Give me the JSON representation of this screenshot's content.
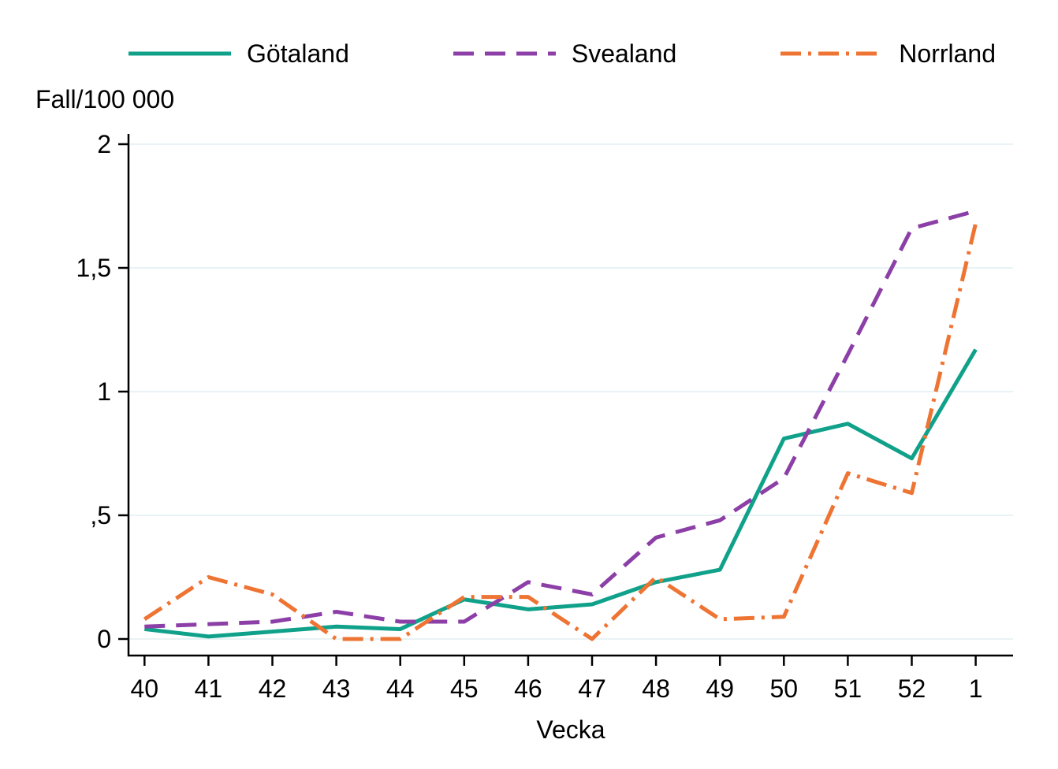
{
  "y_axis_title": "Fall/100 000",
  "x_axis_title": "Vecka",
  "legend": {
    "items": [
      {
        "label": "Götaland",
        "icon": "solid-line-sample-icon"
      },
      {
        "label": "Svealand",
        "icon": "dashed-line-sample-icon"
      },
      {
        "label": "Norrland",
        "icon": "dash-dot-line-sample-icon"
      }
    ]
  },
  "colors": {
    "gotaland": "#10A18A",
    "svealand": "#8C3FA6",
    "norrland": "#EE7433",
    "grid": "#E9F2F5",
    "axis": "#000000"
  },
  "chart_data": {
    "type": "line",
    "title": "",
    "xlabel": "Vecka",
    "ylabel": "Fall/100 000",
    "grid": true,
    "legend_position": "top",
    "ylim": [
      0,
      2
    ],
    "categories": [
      "40",
      "41",
      "42",
      "43",
      "44",
      "45",
      "46",
      "47",
      "48",
      "49",
      "50",
      "51",
      "52",
      "1"
    ],
    "y_ticks": [
      {
        "value": 0,
        "label": "0"
      },
      {
        "value": 0.5,
        "label": ",5"
      },
      {
        "value": 1,
        "label": "1"
      },
      {
        "value": 1.5,
        "label": "1,5"
      },
      {
        "value": 2,
        "label": "2"
      }
    ],
    "series": [
      {
        "name": "Götaland",
        "color": "#10A18A",
        "line_style": "solid",
        "values": [
          0.04,
          0.01,
          0.03,
          0.05,
          0.04,
          0.16,
          0.12,
          0.14,
          0.23,
          0.28,
          0.81,
          0.87,
          0.73,
          1.17
        ]
      },
      {
        "name": "Svealand",
        "color": "#8C3FA6",
        "line_style": "dashed",
        "values": [
          0.05,
          0.06,
          0.07,
          0.11,
          0.07,
          0.07,
          0.23,
          0.18,
          0.41,
          0.48,
          0.65,
          1.15,
          1.66,
          1.73
        ]
      },
      {
        "name": "Norrland",
        "color": "#EE7433",
        "line_style": "dash-dot",
        "values": [
          0.08,
          0.25,
          0.18,
          0.0,
          0.0,
          0.17,
          0.17,
          0.0,
          0.25,
          0.08,
          0.09,
          0.67,
          0.59,
          1.68
        ]
      }
    ]
  }
}
